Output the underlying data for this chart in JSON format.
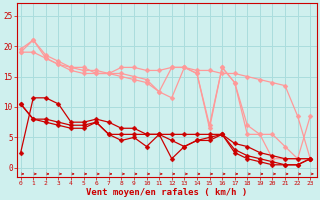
{
  "xlabel": "Vent moyen/en rafales ( km/h )",
  "bg_color": "#cff0ee",
  "grid_color": "#aadddd",
  "x": [
    0,
    1,
    2,
    3,
    4,
    5,
    6,
    7,
    8,
    9,
    10,
    11,
    12,
    13,
    14,
    15,
    16,
    17,
    18,
    19,
    20,
    21,
    22,
    23
  ],
  "yticks": [
    0,
    5,
    10,
    15,
    20,
    25
  ],
  "ylim": [
    -1.5,
    27
  ],
  "xlim": [
    -0.3,
    23.5
  ],
  "lines_light": [
    [
      19.5,
      21.0,
      18.5,
      17.5,
      16.5,
      16.0,
      16.0,
      15.5,
      16.5,
      16.5,
      16.0,
      16.0,
      16.5,
      16.5,
      16.0,
      16.0,
      15.5,
      15.5,
      15.0,
      14.5,
      14.0,
      13.5,
      8.5,
      1.5
    ],
    [
      19.0,
      21.0,
      18.0,
      17.0,
      16.5,
      16.5,
      15.5,
      15.5,
      15.0,
      14.5,
      14.0,
      12.5,
      11.5,
      16.5,
      15.5,
      6.5,
      16.5,
      14.0,
      5.5,
      5.5,
      5.5,
      3.5,
      1.5,
      1.5
    ],
    [
      19.0,
      19.0,
      18.0,
      17.0,
      16.0,
      15.5,
      15.5,
      15.5,
      15.5,
      15.0,
      14.5,
      12.5,
      16.5,
      16.5,
      15.5,
      7.0,
      16.5,
      14.0,
      7.0,
      5.5,
      1.5,
      1.5,
      1.5,
      8.5
    ]
  ],
  "lines_dark": [
    [
      2.5,
      11.5,
      11.5,
      10.5,
      7.5,
      7.5,
      8.0,
      7.5,
      6.5,
      6.5,
      5.5,
      5.5,
      5.5,
      5.5,
      5.5,
      5.5,
      5.5,
      4.0,
      3.5,
      2.5,
      2.0,
      1.5,
      1.5,
      1.5
    ],
    [
      10.5,
      8.0,
      8.0,
      7.5,
      7.0,
      7.0,
      7.5,
      5.5,
      5.5,
      5.5,
      5.5,
      5.5,
      4.5,
      3.5,
      4.5,
      5.0,
      5.5,
      3.0,
      2.0,
      1.5,
      1.0,
      0.5,
      0.5,
      1.5
    ],
    [
      10.5,
      8.0,
      7.5,
      7.0,
      6.5,
      6.5,
      7.5,
      5.5,
      4.5,
      5.0,
      3.5,
      5.5,
      1.5,
      3.5,
      4.5,
      4.5,
      5.5,
      2.5,
      1.5,
      1.0,
      0.5,
      0.5,
      0.5,
      1.5
    ]
  ],
  "light_color": "#ff9999",
  "dark_color": "#cc0000",
  "marker_size": 2.5,
  "linewidth": 0.9
}
